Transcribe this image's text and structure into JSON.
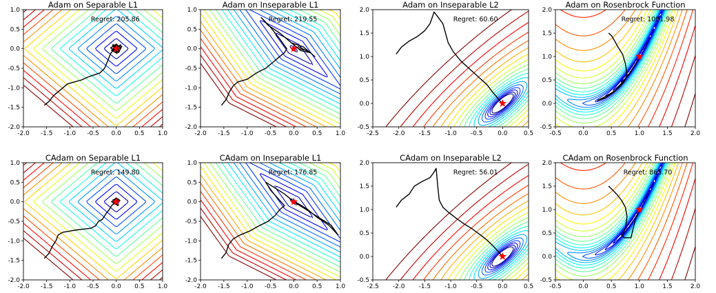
{
  "chart_data": [
    {
      "type": "contour",
      "title": "Adam on Separable L1",
      "func": "sep",
      "regret_text": "Regret: 205.86",
      "xlim": [
        -2.0,
        1.0
      ],
      "ylim": [
        -2.0,
        1.0
      ],
      "xticks": [
        "-2.0",
        "-1.5",
        "-1.0",
        "-0.5",
        "0.0",
        "0.5",
        "1.0"
      ],
      "yticks": [
        "-2.0",
        "-1.5",
        "-1.0",
        "-0.5",
        "0.0",
        "0.5",
        "1.0"
      ],
      "optimum": [
        0,
        0
      ],
      "trajectory": [
        [
          -1.55,
          -1.45
        ],
        [
          -1.45,
          -1.35
        ],
        [
          -1.35,
          -1.2
        ],
        [
          -1.2,
          -1.05
        ],
        [
          -1.05,
          -0.9
        ],
        [
          -0.9,
          -0.85
        ],
        [
          -0.75,
          -0.8
        ],
        [
          -0.6,
          -0.72
        ],
        [
          -0.5,
          -0.68
        ],
        [
          -0.35,
          -0.62
        ],
        [
          -0.25,
          -0.5
        ],
        [
          -0.18,
          -0.3
        ],
        [
          -0.12,
          -0.12
        ],
        [
          -0.05,
          -0.02
        ],
        [
          0.05,
          0.05
        ],
        [
          -0.06,
          0.08
        ],
        [
          0.07,
          -0.06
        ],
        [
          -0.05,
          -0.05
        ],
        [
          0.1,
          0.02
        ],
        [
          0.0,
          0.12
        ],
        [
          -0.12,
          0.02
        ],
        [
          0.05,
          -0.1
        ],
        [
          0.12,
          0.06
        ],
        [
          -0.08,
          0.1
        ],
        [
          0.02,
          -0.12
        ],
        [
          -0.1,
          -0.04
        ],
        [
          0.1,
          0.1
        ],
        [
          0.0,
          0.0
        ]
      ]
    },
    {
      "type": "contour",
      "title": "Adam on Inseparable L1",
      "func": "insep1",
      "regret_text": "Regret: 219.55",
      "xlim": [
        -2.0,
        1.0
      ],
      "ylim": [
        -2.0,
        1.0
      ],
      "xticks": [
        "-2.0",
        "-1.5",
        "-1.0",
        "-0.5",
        "0.0",
        "0.5",
        "1.0"
      ],
      "yticks": [
        "-2.0",
        "-1.5",
        "-1.0",
        "-0.5",
        "0.0",
        "0.5",
        "1.0"
      ],
      "optimum": [
        0,
        0
      ],
      "trajectory": [
        [
          -1.55,
          -1.45
        ],
        [
          -1.45,
          -1.3
        ],
        [
          -1.38,
          -1.1
        ],
        [
          -1.3,
          -0.95
        ],
        [
          -1.2,
          -0.85
        ],
        [
          -1.0,
          -0.78
        ],
        [
          -0.8,
          -0.62
        ],
        [
          -0.6,
          -0.5
        ],
        [
          -0.45,
          -0.35
        ],
        [
          -0.35,
          -0.25
        ],
        [
          -0.2,
          -0.1
        ],
        [
          -0.15,
          0.0
        ],
        [
          -0.3,
          0.25
        ],
        [
          -0.5,
          0.55
        ],
        [
          -0.7,
          0.8
        ],
        [
          -0.55,
          0.6
        ],
        [
          -0.3,
          0.4
        ],
        [
          -0.1,
          0.2
        ],
        [
          0.1,
          0.0
        ],
        [
          0.3,
          -0.05
        ],
        [
          0.45,
          -0.2
        ],
        [
          0.2,
          0.05
        ],
        [
          -0.05,
          0.15
        ],
        [
          -0.25,
          0.35
        ],
        [
          -0.1,
          0.2
        ],
        [
          0.15,
          -0.05
        ],
        [
          0.35,
          -0.1
        ],
        [
          0.1,
          0.05
        ],
        [
          0.0,
          0.0
        ]
      ]
    },
    {
      "type": "contour",
      "title": "Adam on Inseparable L2",
      "func": "insep2",
      "regret_text": "Regret: 60.60",
      "xlim": [
        -2.5,
        0.5
      ],
      "ylim": [
        -0.5,
        2.0
      ],
      "xticks": [
        "-2.5",
        "-2.0",
        "-1.5",
        "-1.0",
        "-0.5",
        "0.0",
        "0.5"
      ],
      "yticks": [
        "-0.5",
        "0.0",
        "0.5",
        "1.0",
        "1.5",
        "2.0"
      ],
      "optimum": [
        0,
        0
      ],
      "trajectory": [
        [
          -2.05,
          1.05
        ],
        [
          -1.95,
          1.2
        ],
        [
          -1.8,
          1.33
        ],
        [
          -1.65,
          1.42
        ],
        [
          -1.5,
          1.55
        ],
        [
          -1.4,
          1.7
        ],
        [
          -1.35,
          1.85
        ],
        [
          -1.32,
          1.95
        ],
        [
          -1.25,
          1.85
        ],
        [
          -1.15,
          1.7
        ],
        [
          -1.1,
          1.5
        ],
        [
          -1.05,
          1.3
        ],
        [
          -0.95,
          1.1
        ],
        [
          -0.8,
          0.9
        ],
        [
          -0.6,
          0.7
        ],
        [
          -0.45,
          0.55
        ],
        [
          -0.3,
          0.4
        ],
        [
          -0.2,
          0.25
        ],
        [
          -0.1,
          0.12
        ],
        [
          -0.05,
          0.05
        ],
        [
          0.0,
          0.0
        ]
      ]
    },
    {
      "type": "contour",
      "title": "Adam on Rosenbrock Function",
      "func": "rosen",
      "regret_text": "Regret: 1091.98",
      "xlim": [
        -0.5,
        2.0
      ],
      "ylim": [
        -0.5,
        2.0
      ],
      "xticks": [
        "-0.5",
        "0.0",
        "0.5",
        "1.0",
        "1.5",
        "2.0"
      ],
      "yticks": [
        "-0.5",
        "0.0",
        "0.5",
        "1.0",
        "1.5",
        "2.0"
      ],
      "optimum": [
        1,
        1
      ],
      "trajectory": [
        [
          0.45,
          1.5
        ],
        [
          0.5,
          1.45
        ],
        [
          0.55,
          1.35
        ],
        [
          0.62,
          1.2
        ],
        [
          0.7,
          1.05
        ],
        [
          0.75,
          0.85
        ],
        [
          0.78,
          0.6
        ],
        [
          0.72,
          0.45
        ],
        [
          0.62,
          0.32
        ],
        [
          0.5,
          0.22
        ],
        [
          0.35,
          0.12
        ],
        [
          0.25,
          0.06
        ],
        [
          0.4,
          0.12
        ],
        [
          0.55,
          0.25
        ],
        [
          0.7,
          0.45
        ],
        [
          0.85,
          0.68
        ],
        [
          0.95,
          0.88
        ],
        [
          1.0,
          1.0
        ]
      ]
    },
    {
      "type": "contour",
      "title": "CAdam on Separable L1",
      "func": "sep",
      "regret_text": "Regret: 149.80",
      "xlim": [
        -2.0,
        1.0
      ],
      "ylim": [
        -2.0,
        1.0
      ],
      "xticks": [
        "-2.0",
        "-1.5",
        "-1.0",
        "-0.5",
        "0.0",
        "0.5",
        "1.0"
      ],
      "yticks": [
        "-2.0",
        "-1.5",
        "-1.0",
        "-0.5",
        "0.0",
        "0.5",
        "1.0"
      ],
      "optimum": [
        0,
        0
      ],
      "trajectory": [
        [
          -1.55,
          -1.45
        ],
        [
          -1.45,
          -1.32
        ],
        [
          -1.38,
          -1.15
        ],
        [
          -1.3,
          -1.0
        ],
        [
          -1.25,
          -0.85
        ],
        [
          -1.15,
          -0.78
        ],
        [
          -1.0,
          -0.75
        ],
        [
          -0.85,
          -0.72
        ],
        [
          -0.7,
          -0.7
        ],
        [
          -0.55,
          -0.68
        ],
        [
          -0.45,
          -0.62
        ],
        [
          -0.38,
          -0.5
        ],
        [
          -0.3,
          -0.45
        ],
        [
          -0.22,
          -0.3
        ],
        [
          -0.15,
          -0.2
        ],
        [
          -0.1,
          -0.1
        ],
        [
          -0.04,
          -0.03
        ],
        [
          0.06,
          0.06
        ],
        [
          -0.07,
          0.05
        ],
        [
          0.05,
          -0.07
        ],
        [
          -0.05,
          -0.05
        ],
        [
          0.08,
          0.03
        ],
        [
          0.0,
          0.1
        ],
        [
          -0.1,
          0.0
        ],
        [
          0.04,
          -0.1
        ],
        [
          0.0,
          0.0
        ]
      ]
    },
    {
      "type": "contour",
      "title": "CAdam on Inseparable L1",
      "func": "insep1",
      "regret_text": "Regret: 176.85",
      "xlim": [
        -2.0,
        1.0
      ],
      "ylim": [
        -2.0,
        1.0
      ],
      "xticks": [
        "-2.0",
        "-1.5",
        "-1.0",
        "-0.5",
        "0.0",
        "0.5",
        "1.0"
      ],
      "yticks": [
        "-2.0",
        "-1.5",
        "-1.0",
        "-0.5",
        "0.0",
        "0.5",
        "1.0"
      ],
      "optimum": [
        0,
        0
      ],
      "trajectory": [
        [
          -1.55,
          -1.45
        ],
        [
          -1.45,
          -1.3
        ],
        [
          -1.4,
          -1.1
        ],
        [
          -1.3,
          -0.95
        ],
        [
          -1.15,
          -0.85
        ],
        [
          -0.95,
          -0.75
        ],
        [
          -0.75,
          -0.62
        ],
        [
          -0.55,
          -0.5
        ],
        [
          -0.4,
          -0.35
        ],
        [
          -0.3,
          -0.2
        ],
        [
          -0.2,
          -0.1
        ],
        [
          -0.35,
          0.1
        ],
        [
          -0.5,
          0.3
        ],
        [
          -0.6,
          0.5
        ],
        [
          -0.4,
          0.35
        ],
        [
          -0.2,
          0.2
        ],
        [
          0.0,
          0.0
        ],
        [
          0.2,
          -0.15
        ],
        [
          0.4,
          -0.3
        ],
        [
          0.6,
          -0.45
        ],
        [
          0.8,
          -0.6
        ],
        [
          0.95,
          -0.85
        ],
        [
          0.75,
          -0.6
        ],
        [
          0.5,
          -0.4
        ],
        [
          0.3,
          -0.2
        ],
        [
          0.1,
          -0.05
        ],
        [
          0.0,
          0.0
        ]
      ]
    },
    {
      "type": "contour",
      "title": "CAdam on Inseparable L2",
      "func": "insep2",
      "regret_text": "Regret: 56.01",
      "xlim": [
        -2.5,
        0.5
      ],
      "ylim": [
        -0.5,
        2.0
      ],
      "xticks": [
        "-2.5",
        "-2.0",
        "-1.5",
        "-1.0",
        "-0.5",
        "0.0",
        "0.5"
      ],
      "yticks": [
        "-0.5",
        "0.0",
        "0.5",
        "1.0",
        "1.5",
        "2.0"
      ],
      "optimum": [
        0,
        0
      ],
      "trajectory": [
        [
          -2.05,
          1.05
        ],
        [
          -1.95,
          1.2
        ],
        [
          -1.8,
          1.33
        ],
        [
          -1.7,
          1.5
        ],
        [
          -1.55,
          1.6
        ],
        [
          -1.4,
          1.68
        ],
        [
          -1.32,
          1.8
        ],
        [
          -1.28,
          1.88
        ],
        [
          -1.25,
          1.5
        ],
        [
          -1.22,
          1.2
        ],
        [
          -1.15,
          1.05
        ],
        [
          -1.05,
          0.95
        ],
        [
          -0.9,
          0.82
        ],
        [
          -0.75,
          0.7
        ],
        [
          -0.6,
          0.6
        ],
        [
          -0.45,
          0.48
        ],
        [
          -0.3,
          0.35
        ],
        [
          -0.18,
          0.22
        ],
        [
          -0.08,
          0.1
        ],
        [
          0.0,
          0.0
        ]
      ]
    },
    {
      "type": "contour",
      "title": "CAdam on Rosenbrock Function",
      "func": "rosen",
      "regret_text": "Regret: 865.70",
      "xlim": [
        -0.5,
        2.0
      ],
      "ylim": [
        -0.5,
        2.0
      ],
      "xticks": [
        "-0.5",
        "0.0",
        "0.5",
        "1.0",
        "1.5",
        "2.0"
      ],
      "yticks": [
        "-0.5",
        "0.0",
        "0.5",
        "1.0",
        "1.5",
        "2.0"
      ],
      "optimum": [
        1,
        1
      ],
      "trajectory": [
        [
          0.45,
          1.5
        ],
        [
          0.52,
          1.42
        ],
        [
          0.6,
          1.32
        ],
        [
          0.68,
          1.2
        ],
        [
          0.75,
          1.05
        ],
        [
          0.78,
          0.85
        ],
        [
          0.75,
          0.6
        ],
        [
          0.7,
          0.45
        ],
        [
          0.72,
          0.4
        ],
        [
          0.85,
          0.4
        ],
        [
          0.88,
          0.55
        ],
        [
          0.92,
          0.75
        ],
        [
          0.96,
          0.9
        ],
        [
          1.0,
          1.0
        ]
      ]
    }
  ]
}
